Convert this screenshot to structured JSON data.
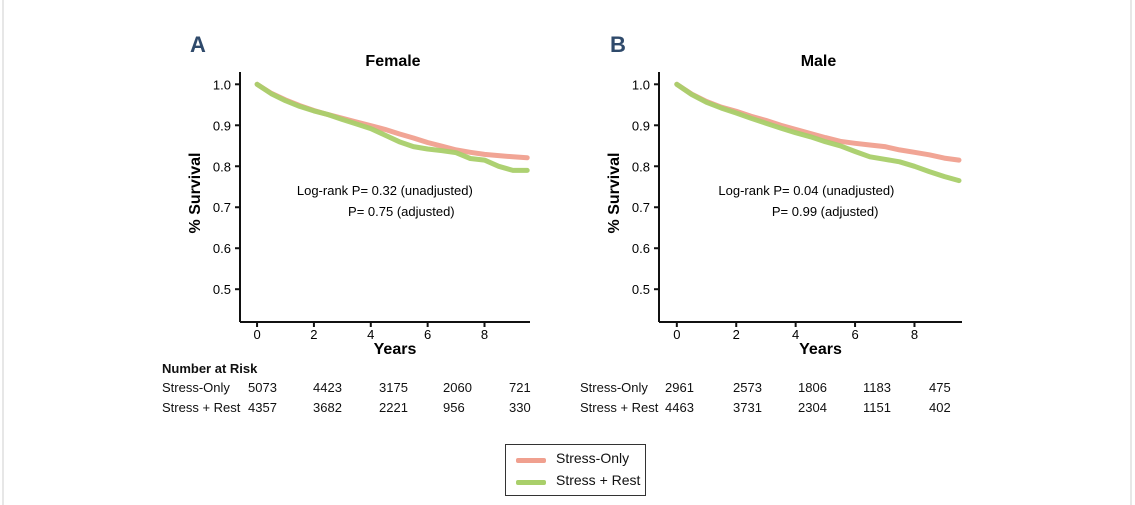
{
  "colors": {
    "stress_only": "#f0a08f",
    "stress_rest": "#a9cf6a"
  },
  "chart_data": [
    {
      "type": "line",
      "panel_letter": "A",
      "title": "Female",
      "xlabel": "Years",
      "ylabel": "% Survival",
      "xlim": [
        -0.6,
        9.6
      ],
      "ylim": [
        0.42,
        1.03
      ],
      "xticks": [
        0,
        2,
        4,
        6,
        8
      ],
      "yticks": [
        0.5,
        0.6,
        0.7,
        0.8,
        0.9,
        1.0
      ],
      "annotation": {
        "line1": "Log-rank  P= 0.32 (unadjusted)",
        "line2": "P= 0.75 (adjusted)"
      },
      "series": [
        {
          "name": "Stress-Only",
          "color": "#f0a08f",
          "x": [
            0,
            0.5,
            1,
            1.5,
            2,
            2.5,
            3,
            3.5,
            4,
            4.5,
            5,
            5.5,
            6,
            6.5,
            7,
            7.5,
            8,
            8.5,
            9,
            9.5
          ],
          "y": [
            1.0,
            0.978,
            0.962,
            0.948,
            0.936,
            0.926,
            0.917,
            0.908,
            0.899,
            0.89,
            0.879,
            0.869,
            0.858,
            0.849,
            0.84,
            0.834,
            0.829,
            0.826,
            0.823,
            0.821
          ]
        },
        {
          "name": "Stress + Rest",
          "color": "#a9cf6a",
          "x": [
            0,
            0.5,
            1,
            1.5,
            2,
            2.5,
            3,
            3.5,
            4,
            4.5,
            5,
            5.5,
            6,
            6.5,
            7,
            7.5,
            8,
            8.5,
            9,
            9.5
          ],
          "y": [
            1.0,
            0.977,
            0.96,
            0.946,
            0.935,
            0.926,
            0.914,
            0.903,
            0.892,
            0.876,
            0.86,
            0.848,
            0.842,
            0.838,
            0.833,
            0.819,
            0.815,
            0.8,
            0.79,
            0.79
          ]
        }
      ]
    },
    {
      "type": "line",
      "panel_letter": "B",
      "title": "Male",
      "xlabel": "Years",
      "ylabel": "% Survival",
      "xlim": [
        -0.6,
        9.6
      ],
      "ylim": [
        0.42,
        1.03
      ],
      "xticks": [
        0,
        2,
        4,
        6,
        8
      ],
      "yticks": [
        0.5,
        0.6,
        0.7,
        0.8,
        0.9,
        1.0
      ],
      "annotation": {
        "line1": "Log-rank  P= 0.04 (unadjusted)",
        "line2": "P= 0.99 (adjusted)"
      },
      "series": [
        {
          "name": "Stress-Only",
          "color": "#f0a08f",
          "x": [
            0,
            0.5,
            1,
            1.5,
            2,
            2.5,
            3,
            3.5,
            4,
            4.5,
            5,
            5.5,
            6,
            6.5,
            7,
            7.5,
            8,
            8.5,
            9,
            9.5
          ],
          "y": [
            1.0,
            0.976,
            0.958,
            0.944,
            0.934,
            0.922,
            0.912,
            0.9,
            0.89,
            0.88,
            0.87,
            0.861,
            0.856,
            0.852,
            0.848,
            0.84,
            0.834,
            0.828,
            0.82,
            0.815
          ]
        },
        {
          "name": "Stress + Rest",
          "color": "#a9cf6a",
          "x": [
            0,
            0.5,
            1,
            1.5,
            2,
            2.5,
            3,
            3.5,
            4,
            4.5,
            5,
            5.5,
            6,
            6.5,
            7,
            7.5,
            8,
            8.5,
            9,
            9.5
          ],
          "y": [
            1.0,
            0.975,
            0.956,
            0.942,
            0.93,
            0.917,
            0.905,
            0.893,
            0.882,
            0.872,
            0.86,
            0.85,
            0.836,
            0.823,
            0.817,
            0.811,
            0.8,
            0.787,
            0.775,
            0.765
          ]
        }
      ]
    }
  ],
  "risk_table": {
    "title": "Number at Risk",
    "female": {
      "rows": [
        {
          "label": "Stress-Only",
          "values": [
            "5073",
            "4423",
            "3175",
            "2060",
            "721"
          ]
        },
        {
          "label": "Stress + Rest",
          "values": [
            "4357",
            "3682",
            "2221",
            "956",
            "330"
          ]
        }
      ]
    },
    "male": {
      "rows": [
        {
          "label": "Stress-Only",
          "values": [
            "2961",
            "2573",
            "1806",
            "1183",
            "475"
          ]
        },
        {
          "label": "Stress + Rest",
          "values": [
            "4463",
            "3731",
            "2304",
            "1151",
            "402"
          ]
        }
      ]
    }
  },
  "legend": {
    "items": [
      {
        "label": "Stress-Only",
        "color": "#f0a08f"
      },
      {
        "label": "Stress + Rest",
        "color": "#a9cf6a"
      }
    ]
  }
}
